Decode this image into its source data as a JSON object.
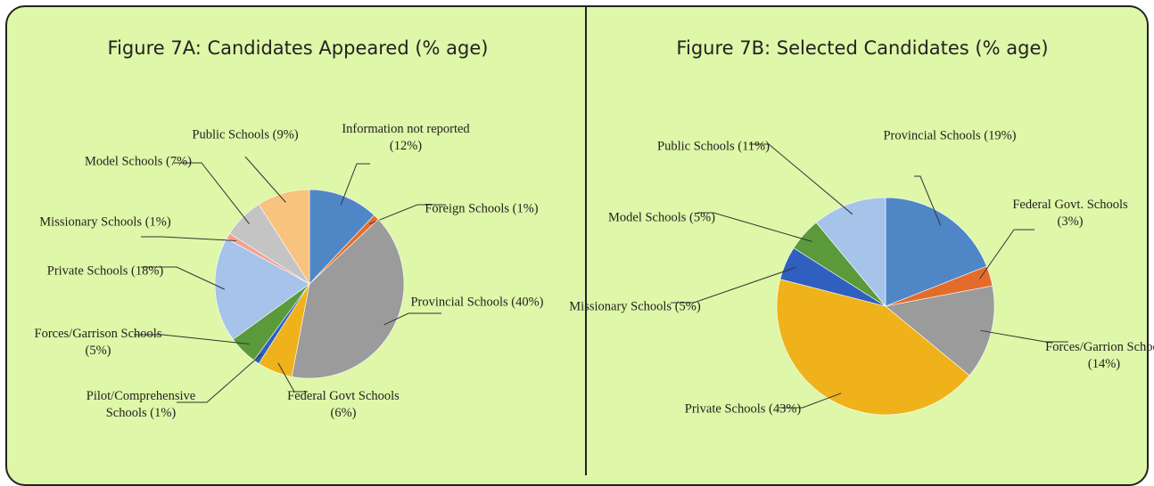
{
  "chart_data": [
    {
      "type": "pie",
      "title": "Figure 7A: Candidates Appeared (% age)",
      "categories": [
        "Information not reported",
        "Foreign Schools",
        "Provincial Schools",
        "Federal Govt Schools",
        "Pilot/Comprehensive Schools",
        "Forces/Garrison Schools",
        "Private Schools",
        "Missionary Schools",
        "Model Schools",
        "Public Schools"
      ],
      "values": [
        12,
        1,
        40,
        6,
        1,
        5,
        18,
        1,
        7,
        9
      ],
      "value_labels": [
        "(12%)",
        "(1%)",
        "(40%)",
        "(6%)",
        "(1%)",
        "(5%)",
        "(18%)",
        "(1%)",
        "(7%)",
        "(9%)"
      ],
      "colors": [
        "#4f86c6",
        "#e46c2a",
        "#9b9b9b",
        "#f0b21a",
        "#2f5fbf",
        "#5b9a3a",
        "#a6c3ea",
        "#f2a38e",
        "#c4c4c4",
        "#f8c37f"
      ]
    },
    {
      "type": "pie",
      "title": "Figure 7B: Selected Candidates (% age)",
      "categories": [
        "Provincial Schools",
        "Federal Govt. Schools",
        "Forces/Garrion School",
        "Private Schools",
        "Missionary Schools",
        "Model Schools",
        "Public Schools"
      ],
      "values": [
        19,
        3,
        14,
        43,
        5,
        5,
        11
      ],
      "value_labels": [
        "(19%)",
        "(3%)",
        "(14%)",
        "(43%)",
        "(5%)",
        "(5%)",
        "(11%)"
      ],
      "colors": [
        "#4f86c6",
        "#e46c2a",
        "#9b9b9b",
        "#f0b21a",
        "#2f5fbf",
        "#5b9a3a",
        "#a6c3ea"
      ]
    }
  ]
}
